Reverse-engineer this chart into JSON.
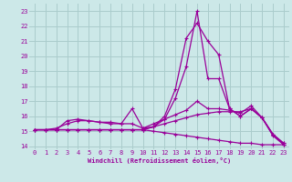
{
  "xlabel": "Windchill (Refroidissement éolien,°C)",
  "background_color": "#cce8e8",
  "grid_color": "#aacccc",
  "line_color": "#990099",
  "xlim": [
    -0.5,
    23.5
  ],
  "ylim": [
    13.8,
    23.5
  ],
  "xticks": [
    0,
    1,
    2,
    3,
    4,
    5,
    6,
    7,
    8,
    9,
    10,
    11,
    12,
    13,
    14,
    15,
    16,
    17,
    18,
    19,
    20,
    21,
    22,
    23
  ],
  "yticks": [
    14,
    15,
    16,
    17,
    18,
    19,
    20,
    21,
    22,
    23
  ],
  "series": [
    {
      "x": [
        0,
        1,
        2,
        3,
        4,
        5,
        6,
        7,
        8,
        9,
        10,
        11,
        12,
        13,
        14,
        15,
        16,
        17,
        18,
        19,
        20,
        21,
        22,
        23
      ],
      "y": [
        15.1,
        15.1,
        15.1,
        15.1,
        15.1,
        15.1,
        15.1,
        15.1,
        15.1,
        15.1,
        15.1,
        15.0,
        14.9,
        14.8,
        14.7,
        14.6,
        14.5,
        14.4,
        14.3,
        14.2,
        14.2,
        14.1,
        14.1,
        14.1
      ]
    },
    {
      "x": [
        0,
        1,
        2,
        3,
        4,
        5,
        6,
        7,
        8,
        9,
        10,
        11,
        12,
        13,
        14,
        15,
        16,
        17,
        18,
        19,
        20,
        21,
        22,
        23
      ],
      "y": [
        15.1,
        15.1,
        15.1,
        15.7,
        15.8,
        15.7,
        15.6,
        15.5,
        15.5,
        15.5,
        15.2,
        15.3,
        15.5,
        15.7,
        15.9,
        16.1,
        16.2,
        16.3,
        16.3,
        16.3,
        16.5,
        15.9,
        14.7,
        14.1
      ]
    },
    {
      "x": [
        0,
        1,
        2,
        3,
        4,
        5,
        6,
        7,
        8,
        9,
        10,
        11,
        12,
        13,
        14,
        15,
        16,
        17,
        18,
        19,
        20,
        21,
        22,
        23
      ],
      "y": [
        15.1,
        15.1,
        15.2,
        15.5,
        15.7,
        15.7,
        15.6,
        15.6,
        15.5,
        16.5,
        15.2,
        15.5,
        15.8,
        16.1,
        16.4,
        17.0,
        16.5,
        16.5,
        16.4,
        16.2,
        16.7,
        15.9,
        14.8,
        14.1
      ]
    },
    {
      "x": [
        0,
        1,
        2,
        3,
        4,
        5,
        6,
        7,
        8,
        9,
        10,
        11,
        12,
        13,
        14,
        15,
        16,
        17,
        18,
        19,
        20,
        21,
        22,
        23
      ],
      "y": [
        15.1,
        15.1,
        15.1,
        15.1,
        15.1,
        15.1,
        15.1,
        15.1,
        15.1,
        15.1,
        15.1,
        15.3,
        15.8,
        17.2,
        19.3,
        23.0,
        18.5,
        18.5,
        16.5,
        16.0,
        16.5,
        15.9,
        14.8,
        14.2
      ]
    },
    {
      "x": [
        0,
        1,
        2,
        3,
        4,
        5,
        6,
        7,
        8,
        9,
        10,
        11,
        12,
        13,
        14,
        15,
        16,
        17,
        18,
        19,
        20,
        21,
        22,
        23
      ],
      "y": [
        15.1,
        15.1,
        15.1,
        15.1,
        15.1,
        15.1,
        15.1,
        15.1,
        15.1,
        15.1,
        15.1,
        15.3,
        16.0,
        17.8,
        21.2,
        22.2,
        21.0,
        20.1,
        16.5,
        16.0,
        16.5,
        15.9,
        14.8,
        14.2
      ]
    }
  ]
}
